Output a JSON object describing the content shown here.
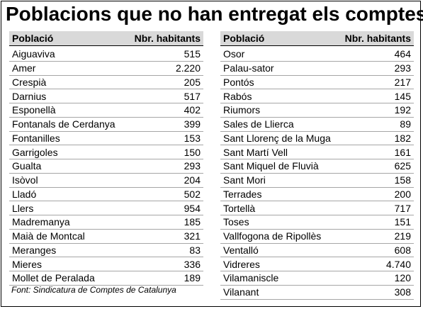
{
  "title": "Poblacions que no han entregat els comptes",
  "columns": {
    "poblacio": "Població",
    "habitants": "Nbr. habitants"
  },
  "left": [
    {
      "name": "Aiguaviva",
      "value": "515"
    },
    {
      "name": "Amer",
      "value": "2.220"
    },
    {
      "name": "Crespià",
      "value": "205"
    },
    {
      "name": "Darnius",
      "value": "517"
    },
    {
      "name": "Esponellà",
      "value": "402"
    },
    {
      "name": "Fontanals de Cerdanya",
      "value": "399"
    },
    {
      "name": "Fontanilles",
      "value": "153"
    },
    {
      "name": "Garrigoles",
      "value": "150"
    },
    {
      "name": "Gualta",
      "value": "293"
    },
    {
      "name": "Isòvol",
      "value": "204"
    },
    {
      "name": "Lladó",
      "value": "502"
    },
    {
      "name": "Llers",
      "value": "954"
    },
    {
      "name": "Madremanya",
      "value": "185"
    },
    {
      "name": "Maià de Montcal",
      "value": "321"
    },
    {
      "name": "Meranges",
      "value": "83"
    },
    {
      "name": "Mieres",
      "value": "336"
    },
    {
      "name": "Mollet de Peralada",
      "value": "189"
    }
  ],
  "right": [
    {
      "name": "Osor",
      "value": "464"
    },
    {
      "name": "Palau-sator",
      "value": "293"
    },
    {
      "name": "Pontós",
      "value": "217"
    },
    {
      "name": "Rabós",
      "value": "145"
    },
    {
      "name": "Riumors",
      "value": "192"
    },
    {
      "name": "Sales de Llierca",
      "value": "89"
    },
    {
      "name": "Sant Llorenç de la Muga",
      "value": "182"
    },
    {
      "name": "Sant Martí Vell",
      "value": "161"
    },
    {
      "name": "Sant Miquel de Fluvià",
      "value": "625"
    },
    {
      "name": "Sant Mori",
      "value": "158"
    },
    {
      "name": "Terrades",
      "value": "200"
    },
    {
      "name": "Tortellà",
      "value": "717"
    },
    {
      "name": "Toses",
      "value": "151"
    },
    {
      "name": "Vallfogona de Ripollès",
      "value": "219"
    },
    {
      "name": "Ventalló",
      "value": "608"
    },
    {
      "name": "Vidreres",
      "value": "4.740"
    },
    {
      "name": "Vilamaniscle",
      "value": "120"
    },
    {
      "name": "Vilanant",
      "value": "308"
    }
  ],
  "source": "Font: Sindicatura de Comptes de Catalunya"
}
